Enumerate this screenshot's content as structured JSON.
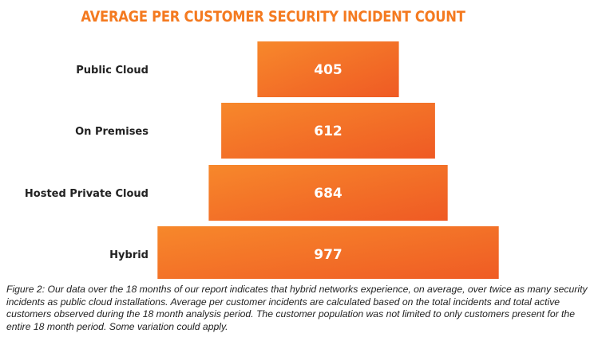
{
  "chart_data": {
    "type": "bar",
    "orientation": "horizontal-centered",
    "title": "AVERAGE PER CUSTOMER SECURITY INCIDENT COUNT",
    "categories": [
      "Public Cloud",
      "On Premises",
      "Hosted Private Cloud",
      "Hybrid"
    ],
    "values": [
      405,
      612,
      684,
      977
    ],
    "xlabel": "",
    "ylabel": "",
    "grid": false,
    "legend": "none",
    "colors": {
      "bar_start": "#f7882b",
      "bar_end": "#ef5a24",
      "title": "#f47a20"
    }
  },
  "caption": "Figure 2: Our data over the 18 months of our report indicates that hybrid networks experience, on average, over twice as many security incidents as public cloud installations.  Average per customer incidents are calculated based on the total incidents and total active customers observed during the 18 month analysis period.  The customer population was not limited to only customers present for the entire 18 month period. Some variation could apply."
}
